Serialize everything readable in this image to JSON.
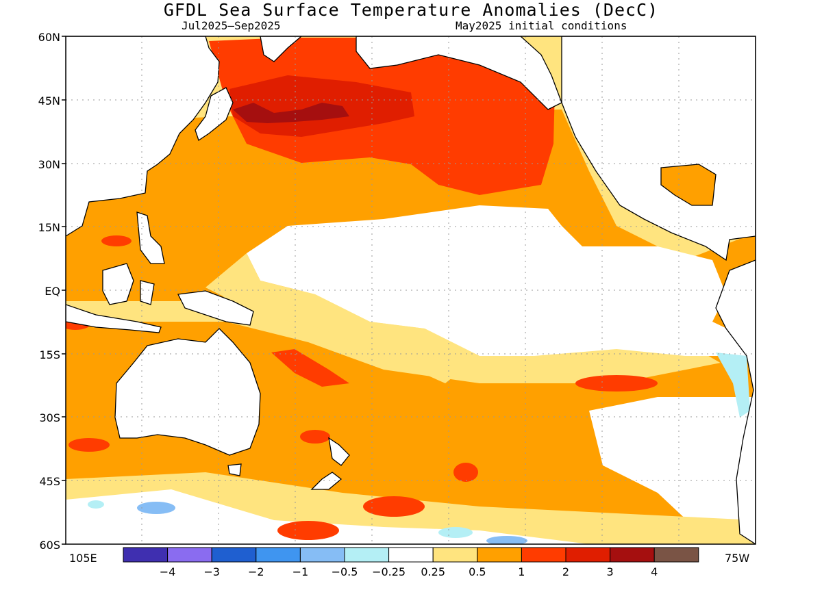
{
  "title": "GFDL Sea Surface Temperature Anomalies (DecC)",
  "subtitle_left": "Jul2025–Sep2025",
  "subtitle_right": "May2025 initial conditions",
  "lat_labels": [
    "60N",
    "45N",
    "30N",
    "15N",
    "EQ",
    "15S",
    "30S",
    "45S",
    "60S"
  ],
  "lon_left": "105E",
  "lon_right": "75W",
  "colorbar": {
    "colors": [
      "#3f2fb0",
      "#8a6cf0",
      "#1f5fd0",
      "#3f95f0",
      "#86bdf5",
      "#b4eff5",
      "#ffffff",
      "#ffe47f",
      "#ffa000",
      "#ff3c00",
      "#e01e00",
      "#a50f0f",
      "#7a5445"
    ],
    "labels": [
      "−4",
      "−3",
      "−2",
      "−1",
      "−0.5",
      "−0.25",
      "0.25",
      "0.5",
      "1",
      "2",
      "3",
      "4"
    ]
  },
  "map": {
    "lat_range": [
      -60,
      60
    ],
    "lon_range_deg_east": [
      105,
      285
    ],
    "land_color": "#ffffff",
    "coast_color": "#000000",
    "anomaly_regions": [
      {
        "name": "north-pacific-warm-blob",
        "level": "1 to 2"
      },
      {
        "name": "north-pacific-core",
        "level": "2 to 3"
      },
      {
        "name": "equatorial-band",
        "level": "-0.25 to 0.25"
      },
      {
        "name": "southern-pacific-warm",
        "level": "0.5 to 1"
      },
      {
        "name": "southern-ocean-cool",
        "level": "-0.5 to -1"
      }
    ]
  }
}
